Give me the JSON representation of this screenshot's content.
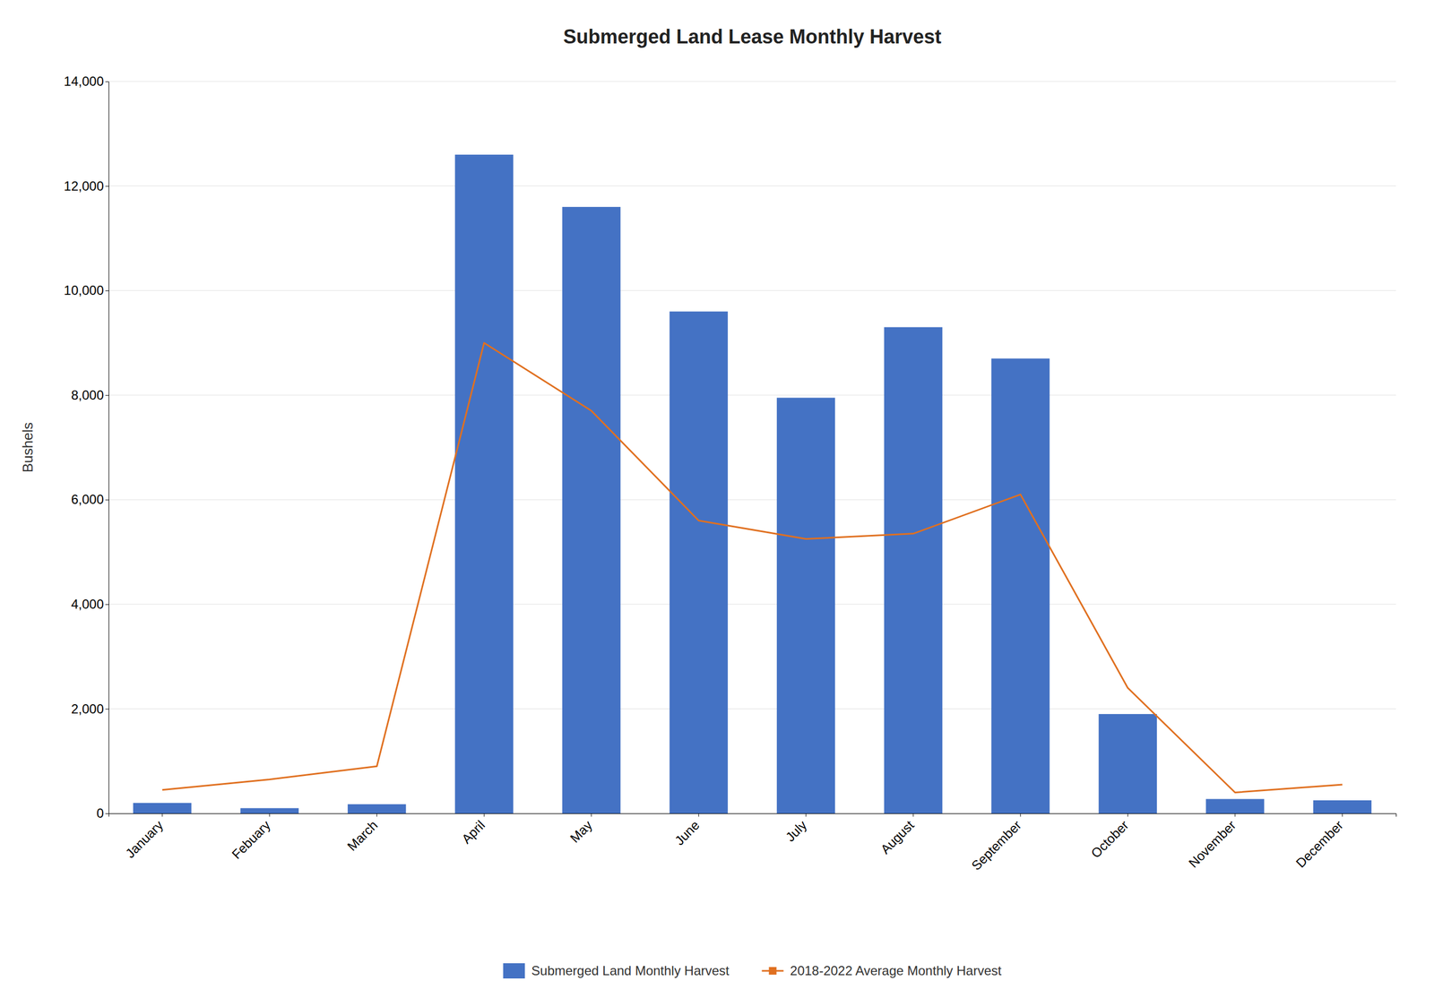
{
  "chart_data": {
    "type": "bar",
    "title": "Submerged Land Lease Monthly Harvest",
    "categories": [
      "January",
      "Febuary",
      "March",
      "April",
      "May",
      "June",
      "July",
      "August",
      "September",
      "October",
      "November",
      "December"
    ],
    "series": [
      {
        "name": "Submerged Land Monthly Harvest",
        "type": "bar",
        "color": "#4472C4",
        "values": [
          200,
          100,
          175,
          12600,
          11600,
          9600,
          7950,
          9300,
          8700,
          1900,
          275,
          250
        ]
      },
      {
        "name": "2018-2022 Average Monthly Harvest",
        "type": "line",
        "color": "#E07020",
        "values": [
          450,
          650,
          900,
          9000,
          7700,
          5600,
          5250,
          5350,
          6100,
          2400,
          400,
          550
        ]
      }
    ],
    "ylabel": "Bushels",
    "ylim": [
      0,
      14000
    ],
    "yticks": [
      0,
      {
        "value": 2000,
        "label": "2,000"
      },
      {
        "value": 4000,
        "label": "4,000"
      },
      {
        "value": 6000,
        "label": "6,000"
      },
      {
        "value": 8000,
        "label": "8,000"
      },
      {
        "value": 10000,
        "label": "10,000"
      },
      {
        "value": 12000,
        "label": "12,000"
      },
      {
        "value": 14000,
        "label": "14,000"
      }
    ],
    "grid": true,
    "legend": "bottom"
  }
}
